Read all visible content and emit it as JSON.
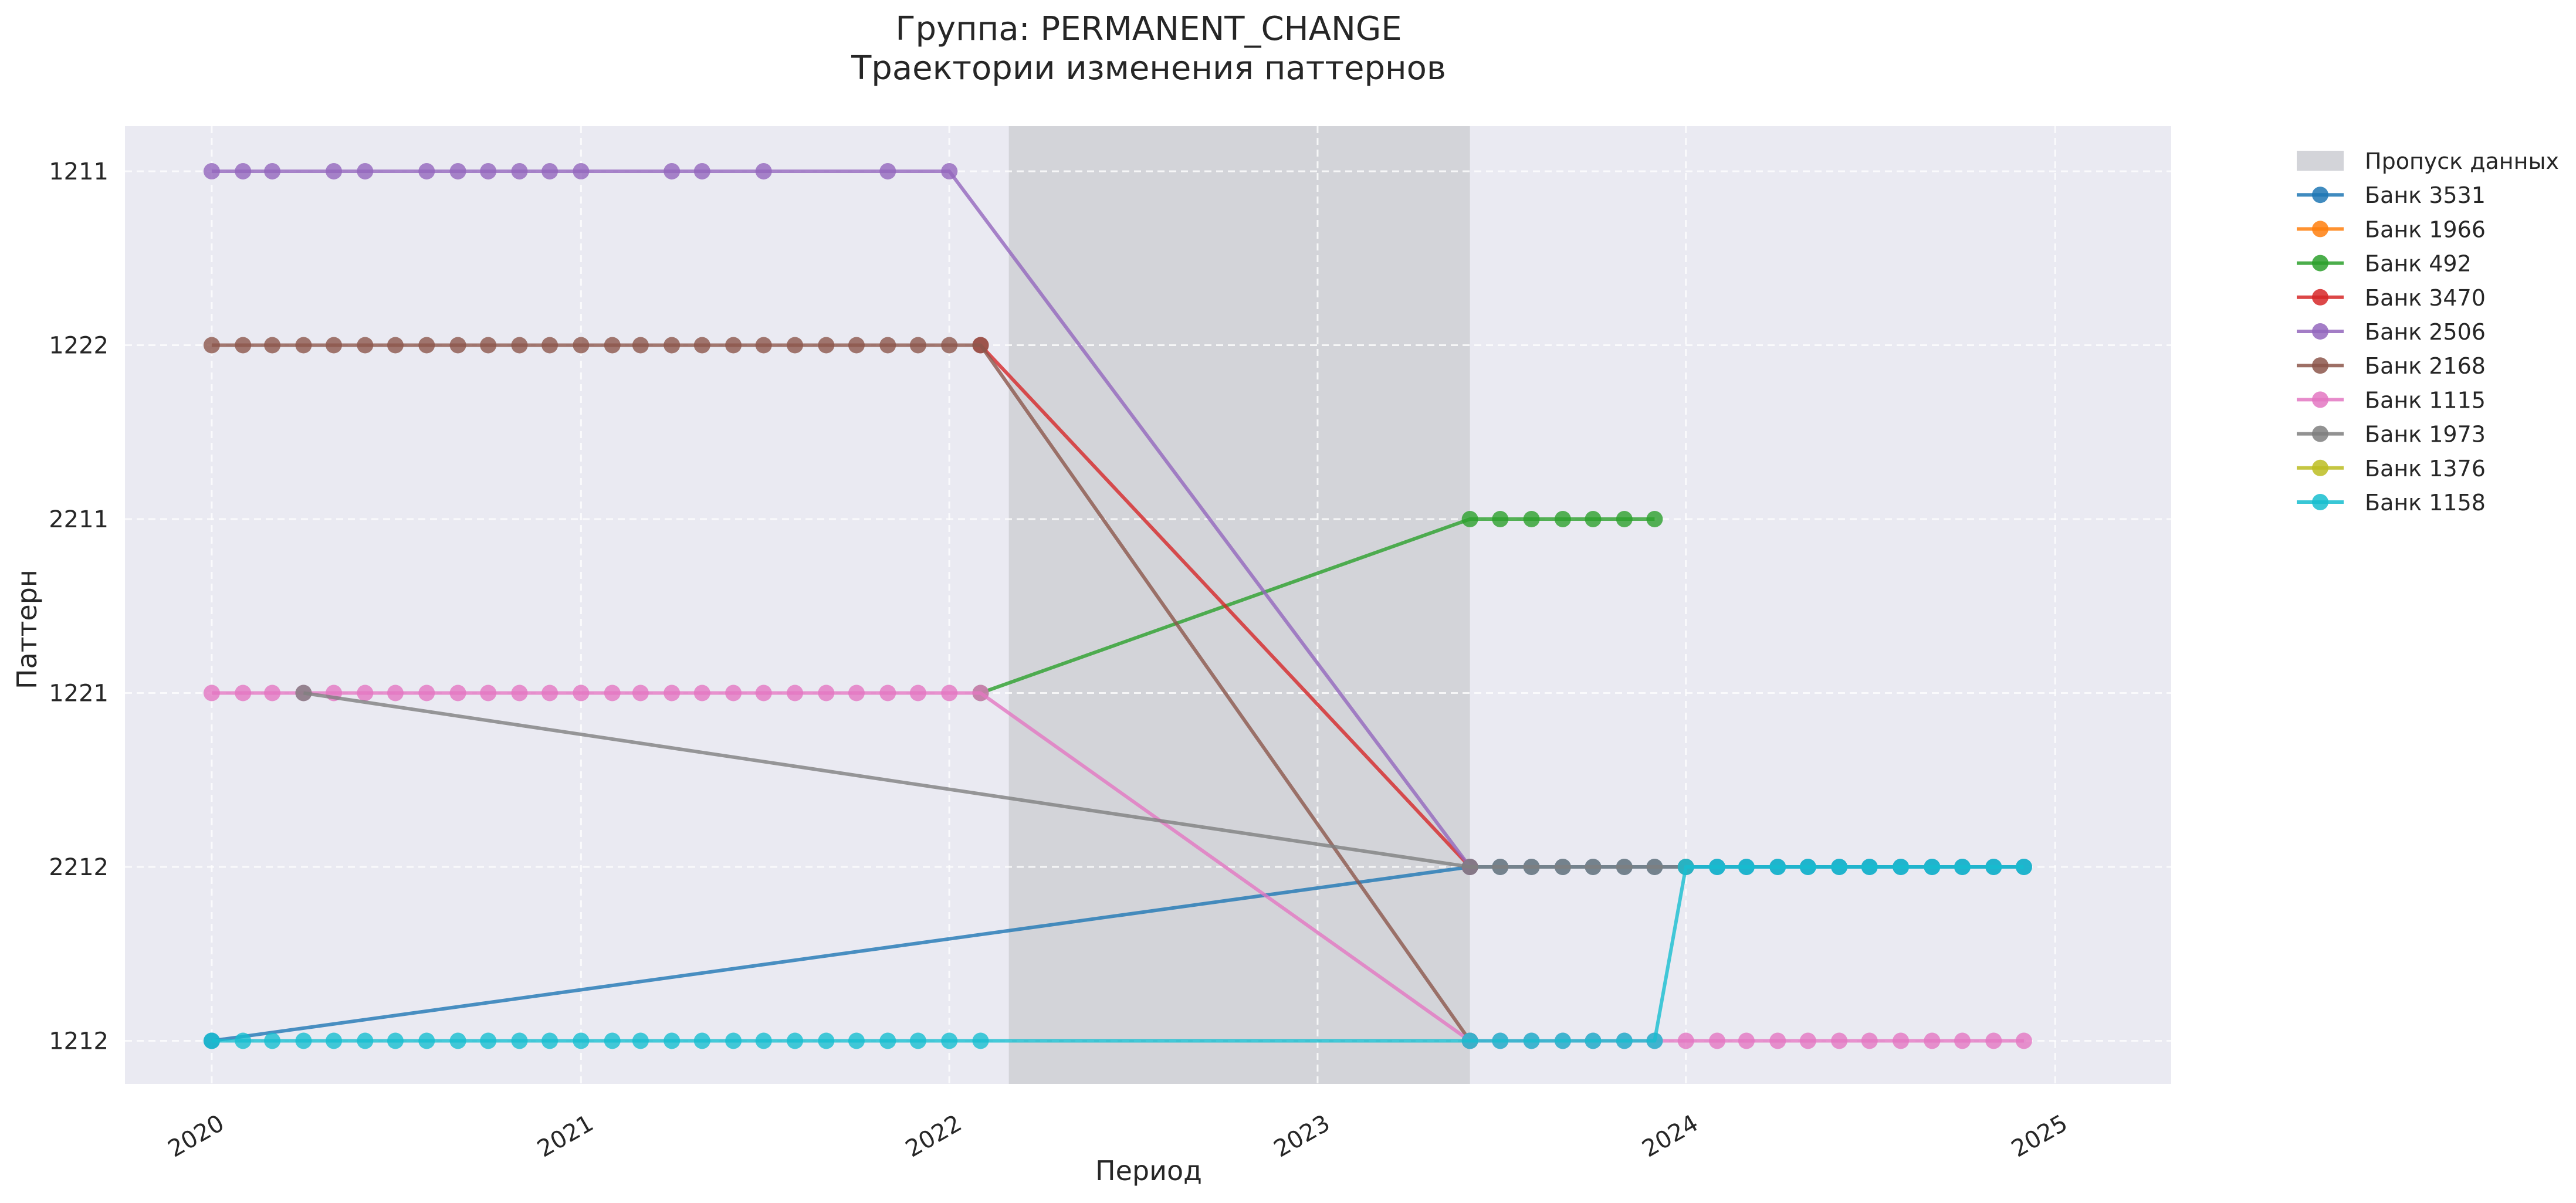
{
  "chart_data": {
    "type": "line",
    "title": "Группа: PERMANENT_CHANGE",
    "subtitle": "Траектории изменения паттернов",
    "xlabel": "Период",
    "ylabel": "Паттерн",
    "x_ticks": [
      "2020",
      "2021",
      "2022",
      "2023",
      "2024",
      "2025"
    ],
    "y_categories": [
      "1211",
      "1222",
      "2211",
      "1221",
      "2212",
      "1212"
    ],
    "xlim": [
      "2019-10-07",
      "2025-04-26"
    ],
    "gap": {
      "label": "Пропуск данных",
      "from": "2022-03-01",
      "to": "2023-06-01",
      "color": "#d3d4d9"
    },
    "grid": true,
    "legend_position": "outside-right",
    "background": "#eaeaf2",
    "series": [
      {
        "name": "Банк 3531",
        "color": "#1f77b4",
        "points": [
          {
            "x": "2020-01-01",
            "y": "1212"
          },
          {
            "x": "2023-06-01",
            "y": "2212"
          },
          {
            "x": "2024-12-01",
            "y": "2212"
          }
        ]
      },
      {
        "name": "Банк 1966",
        "color": "#ff7f0e",
        "points": []
      },
      {
        "name": "Банк 492",
        "color": "#2ca02c",
        "points": [
          {
            "x": "2022-02-01",
            "y": "1221"
          },
          {
            "x": "2023-06-01",
            "y": "2211"
          },
          {
            "x": "2023-12-01",
            "y": "2211"
          }
        ]
      },
      {
        "name": "Банк 3470",
        "color": "#d62728",
        "points": [
          {
            "x": "2022-02-01",
            "y": "1222"
          },
          {
            "x": "2023-06-01",
            "y": "2212"
          }
        ]
      },
      {
        "name": "Банк 2506",
        "color": "#9467bd",
        "points": [
          {
            "x": "2020-01-01",
            "y": "1211"
          },
          {
            "x": "2020-02-01",
            "y": "1211"
          },
          {
            "x": "2020-03-01",
            "y": "1211"
          },
          {
            "x": "2020-05-01",
            "y": "1211"
          },
          {
            "x": "2020-06-01",
            "y": "1211"
          },
          {
            "x": "2020-08-01",
            "y": "1211"
          },
          {
            "x": "2020-09-01",
            "y": "1211"
          },
          {
            "x": "2020-10-01",
            "y": "1211"
          },
          {
            "x": "2020-11-01",
            "y": "1211"
          },
          {
            "x": "2020-12-01",
            "y": "1211"
          },
          {
            "x": "2021-01-01",
            "y": "1211"
          },
          {
            "x": "2021-04-01",
            "y": "1211"
          },
          {
            "x": "2021-05-01",
            "y": "1211"
          },
          {
            "x": "2021-07-01",
            "y": "1211"
          },
          {
            "x": "2021-11-01",
            "y": "1211"
          },
          {
            "x": "2022-01-01",
            "y": "1211"
          },
          {
            "x": "2023-06-01",
            "y": "2212"
          }
        ]
      },
      {
        "name": "Банк 2168",
        "color": "#8c564b",
        "points": [
          {
            "x": "2020-01-01",
            "y": "1222"
          },
          {
            "x": "2022-02-01",
            "y": "1222"
          },
          {
            "x": "2023-06-01",
            "y": "1212"
          }
        ]
      },
      {
        "name": "Банк 1115",
        "color": "#e377c2",
        "points": [
          {
            "x": "2020-01-01",
            "y": "1221"
          },
          {
            "x": "2022-02-01",
            "y": "1221"
          },
          {
            "x": "2023-06-01",
            "y": "1212"
          },
          {
            "x": "2024-12-01",
            "y": "1212"
          }
        ]
      },
      {
        "name": "Банк 1973",
        "color": "#7f7f7f",
        "points": [
          {
            "x": "2020-04-01",
            "y": "1221"
          },
          {
            "x": "2023-06-01",
            "y": "2212"
          },
          {
            "x": "2024-01-01",
            "y": "2212"
          }
        ]
      },
      {
        "name": "Банк 1376",
        "color": "#bcbd22",
        "points": []
      },
      {
        "name": "Банк 1158",
        "color": "#17becf",
        "points": [
          {
            "x": "2020-01-01",
            "y": "1212"
          },
          {
            "x": "2022-02-01",
            "y": "1212"
          },
          {
            "x": "2023-12-01",
            "y": "1212"
          },
          {
            "x": "2024-01-01",
            "y": "2212"
          },
          {
            "x": "2024-12-01",
            "y": "2212"
          }
        ]
      }
    ]
  }
}
